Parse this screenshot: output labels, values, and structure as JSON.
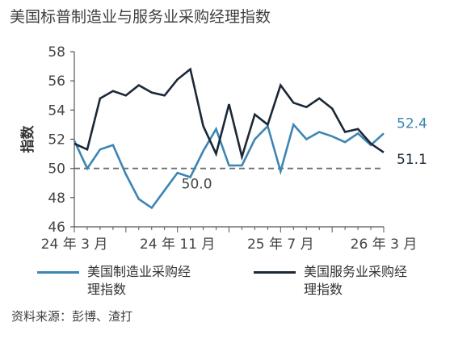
{
  "title": "美国标普制造业与服务业采购经理指数",
  "source": "资料来源：彭博、渣打",
  "chart_data": {
    "type": "line",
    "ylabel": "指数",
    "ylim": [
      46,
      58
    ],
    "yticks": [
      46,
      48,
      50,
      52,
      54,
      56,
      58
    ],
    "xlim": [
      0,
      24
    ],
    "xticks": [
      {
        "x": 0,
        "label": "24 年 3 月"
      },
      {
        "x": 8,
        "label": "24 年 11 月"
      },
      {
        "x": 16,
        "label": "25 年 7 月"
      },
      {
        "x": 24,
        "label": "26 年 3 月"
      }
    ],
    "reference_line": {
      "value": 50,
      "label": "50.0"
    },
    "grid": false,
    "legend_position": "bottom",
    "series": [
      {
        "name": "美国制造业采购经理指数",
        "color": "#3d85b2",
        "end_label": "52.4",
        "values": [
          51.9,
          50.0,
          51.3,
          51.6,
          49.6,
          47.9,
          47.3,
          48.5,
          49.7,
          49.4,
          51.2,
          52.7,
          50.2,
          50.2,
          52.0,
          52.9,
          49.8,
          53.0,
          52.0,
          52.5,
          52.2,
          51.8,
          52.4,
          51.6,
          52.4
        ]
      },
      {
        "name": "美国服务业采购经理指数",
        "color": "#1b2838",
        "end_label": "51.1",
        "values": [
          51.7,
          51.3,
          54.8,
          55.3,
          55.0,
          55.7,
          55.2,
          55.0,
          56.1,
          56.8,
          52.9,
          51.0,
          54.4,
          50.8,
          53.7,
          53.0,
          55.7,
          54.5,
          54.2,
          54.8,
          54.1,
          52.5,
          52.7,
          51.7,
          51.1
        ]
      }
    ]
  }
}
